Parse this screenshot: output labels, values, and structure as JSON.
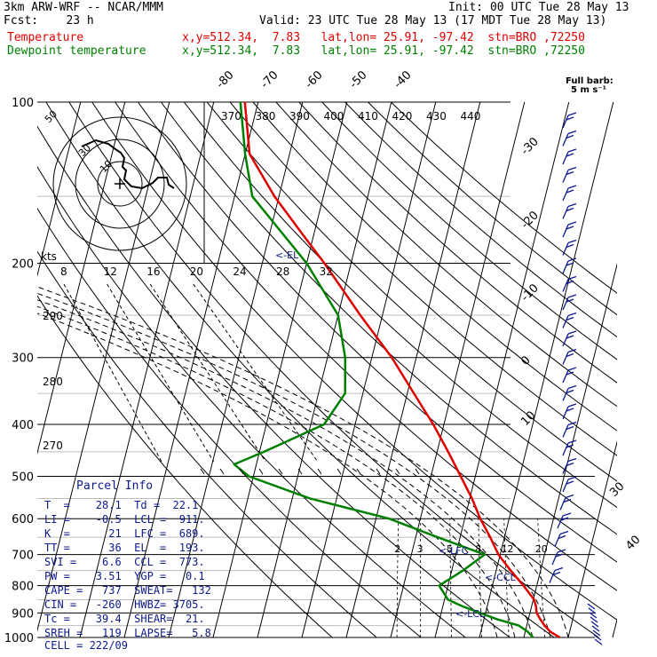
{
  "header": {
    "model": "3km ARW-WRF -- NCAR/MMM",
    "init": "Init: 00 UTC Tue 28 May 13",
    "fcst": "Fcst:    23 h",
    "valid": "Valid: 23 UTC Tue 28 May 13 (17 MDT Tue 28 May 13)",
    "temp_name": "Temperature",
    "temp_info": "x,y=512.34,  7.83   lat,lon= 25.91, -97.42  stn=BRO ,72250",
    "dew_name": "Dewpoint temperature",
    "dew_info": "x,y=512.34,  7.83   lat,lon= 25.91, -97.42  stn=BRO ,72250"
  },
  "parcel_info": {
    "title": "Parcel Info",
    "rows": [
      "T  =    28.1  Td =  22.1",
      "LI =    -0.5  LCL =  911.",
      "K  =      21  LFC =  689.",
      "TT =      36  EL  =  193.",
      "SVI =    6.6  CCL =  773.",
      "PW =    3.51  YGP =   0.1",
      "CAPE =   737  SWEAT=   132",
      "CIN =   -260  HWBZ= 3705.",
      "Tc =    39.4  SHEAR=  21.",
      "SREH =   119  LAPSE=   5.8",
      "CELL = 222/09"
    ]
  },
  "colors": {
    "temperature": "#e00000",
    "dewpoint": "#008000",
    "hodograph": "#000000",
    "barbs": "#0b1a8c",
    "isobars": "#000000",
    "isotherms": "#000000"
  },
  "chart_data": {
    "type": "line",
    "title": "",
    "pressure_levels_hPa": [
      1000,
      900,
      800,
      700,
      600,
      500,
      400,
      300,
      200,
      100
    ],
    "pressure_labels": [
      "1000",
      "900",
      "800",
      "700",
      "600",
      "500",
      "400",
      "300",
      "200",
      "100"
    ],
    "isotherm_labels": [
      "-80",
      "-70",
      "-60",
      "-50",
      "-40",
      "-30",
      "-20",
      "-10",
      "0",
      "10",
      "20",
      "30",
      "40"
    ],
    "theta_labels": [
      "370",
      "380",
      "390",
      "400",
      "410",
      "420",
      "430",
      "440"
    ],
    "theta_side_labels": [
      "290",
      "280",
      "270"
    ],
    "mixing_ratio_labels": [
      "2",
      "3",
      "5",
      "8",
      "12",
      "20"
    ],
    "wind_scale_label": "kts",
    "wind_scale_ticks": [
      "8",
      "12",
      "16",
      "20",
      "24",
      "28",
      "32"
    ],
    "hodograph_ring_labels": [
      "50",
      "30",
      "10"
    ],
    "level_markers": [
      "<-EL",
      "<-LFC",
      "<-CCL",
      "<-LCL"
    ],
    "barb_legend": [
      "Full barb:",
      "5 m s⁻¹"
    ],
    "series": [
      {
        "name": "Temperature",
        "points": [
          [
            1000,
            28.1
          ],
          [
            975,
            25.6
          ],
          [
            950,
            24.0
          ],
          [
            925,
            22.7
          ],
          [
            900,
            21.5
          ],
          [
            875,
            21.0
          ],
          [
            850,
            20.2
          ],
          [
            800,
            17.0
          ],
          [
            750,
            13.3
          ],
          [
            700,
            9.6
          ],
          [
            650,
            6.8
          ],
          [
            600,
            3.5
          ],
          [
            550,
            0.5
          ],
          [
            500,
            -3.3
          ],
          [
            450,
            -7.5
          ],
          [
            400,
            -12.4
          ],
          [
            350,
            -18.5
          ],
          [
            300,
            -25.5
          ],
          [
            250,
            -35.0
          ],
          [
            200,
            -46.0
          ],
          [
            175,
            -53.0
          ],
          [
            150,
            -61.0
          ],
          [
            125,
            -69.0
          ],
          [
            100,
            -73.0
          ]
        ]
      },
      {
        "name": "Dewpoint temperature",
        "points": [
          [
            1000,
            22.1
          ],
          [
            975,
            20.5
          ],
          [
            950,
            18.2
          ],
          [
            925,
            13.0
          ],
          [
            900,
            8.8
          ],
          [
            875,
            4.5
          ],
          [
            850,
            0.8
          ],
          [
            800,
            -2.0
          ],
          [
            750,
            2.5
          ],
          [
            700,
            6.5
          ],
          [
            650,
            -5.0
          ],
          [
            600,
            -17.0
          ],
          [
            550,
            -36.0
          ],
          [
            500,
            -51.0
          ],
          [
            475,
            -55.0
          ],
          [
            450,
            -49.0
          ],
          [
            400,
            -37.0
          ],
          [
            350,
            -34.0
          ],
          [
            300,
            -36.0
          ],
          [
            250,
            -40.0
          ],
          [
            200,
            -50.0
          ],
          [
            150,
            -66.0
          ],
          [
            125,
            -70.0
          ],
          [
            100,
            -74.0
          ]
        ]
      }
    ],
    "xlabel": "",
    "ylabel": "",
    "ylim": [
      1000,
      100
    ],
    "xlim": [
      -40,
      40
    ],
    "y_scale": "log-pressure",
    "grid": true
  }
}
